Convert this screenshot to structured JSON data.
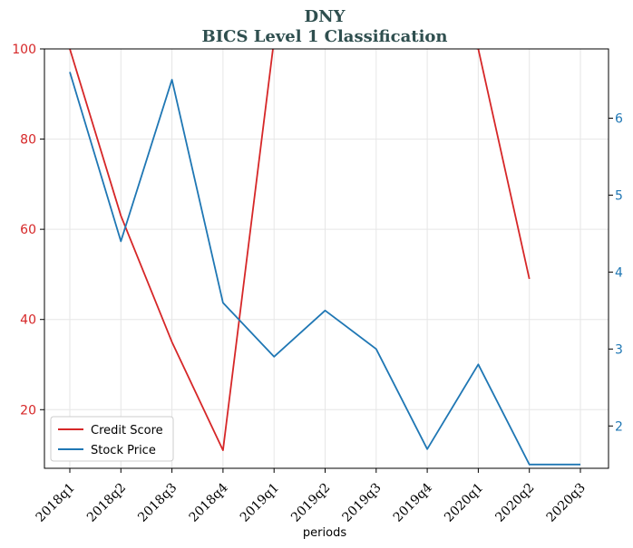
{
  "chart_data": {
    "type": "line",
    "title": "DNY",
    "subtitle": "BICS Level 1 Classification",
    "xlabel": "periods",
    "categories": [
      "2018q1",
      "2018q2",
      "2018q3",
      "2018q4",
      "2019q1",
      "2019q2",
      "2019q3",
      "2019q4",
      "2020q1",
      "2020q2",
      "2020q3"
    ],
    "left_axis": {
      "ylim": [
        7,
        100
      ],
      "ticks": [
        20,
        40,
        60,
        80,
        100
      ],
      "color": "#d62728"
    },
    "right_axis": {
      "ylim": [
        1.45,
        6.9
      ],
      "ticks": [
        2,
        3,
        4,
        5,
        6
      ],
      "color": "#1f77b4"
    },
    "grid": true,
    "legend_position": "bottom-left",
    "series": [
      {
        "name": "Credit Score",
        "axis": "left",
        "color": "#d62728",
        "values": [
          100,
          63,
          35,
          11,
          102,
          102,
          102,
          102,
          100,
          49,
          null
        ]
      },
      {
        "name": "Stock Price",
        "axis": "right",
        "color": "#1f77b4",
        "values": [
          6.6,
          4.4,
          6.5,
          3.6,
          2.9,
          3.5,
          3.0,
          1.7,
          2.8,
          1.5,
          1.5
        ]
      }
    ]
  }
}
